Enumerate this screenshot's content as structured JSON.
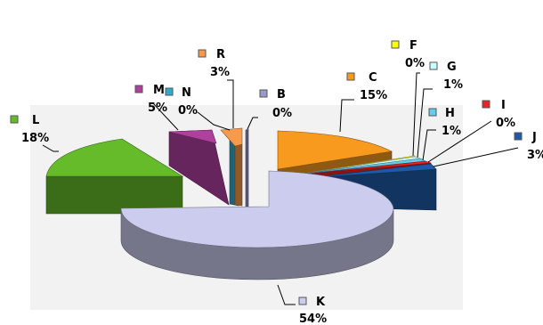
{
  "chart_data": {
    "type": "pie",
    "style": "3d-exploded",
    "title": "",
    "slices": [
      {
        "label": "B",
        "value": 0,
        "pct_label": "0%",
        "color": "#9999cc"
      },
      {
        "label": "C",
        "value": 15,
        "pct_label": "15%",
        "color": "#f79a1e"
      },
      {
        "label": "F",
        "value": 0,
        "pct_label": "0%",
        "color": "#ffff00"
      },
      {
        "label": "G",
        "value": 1,
        "pct_label": "1%",
        "color": "#ccffff"
      },
      {
        "label": "H",
        "value": 1,
        "pct_label": "1%",
        "color": "#66ccee"
      },
      {
        "label": "I",
        "value": 0,
        "pct_label": "0%",
        "color": "#ee2222"
      },
      {
        "label": "J",
        "value": 3,
        "pct_label": "3%",
        "color": "#1f5aa6"
      },
      {
        "label": "K",
        "value": 54,
        "pct_label": "54%",
        "color": "#ccccee"
      },
      {
        "label": "L",
        "value": 18,
        "pct_label": "18%",
        "color": "#66bb2a"
      },
      {
        "label": "M",
        "value": 5,
        "pct_label": "5%",
        "color": "#b0409e"
      },
      {
        "label": "N",
        "value": 0,
        "pct_label": "0%",
        "color": "#33aacc"
      },
      {
        "label": "R",
        "value": 3,
        "pct_label": "3%",
        "color": "#f79a4c"
      }
    ],
    "legend": "per-slice callouts",
    "background": "#f2f2f2"
  }
}
